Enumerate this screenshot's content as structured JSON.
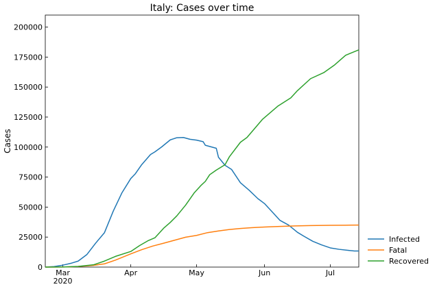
{
  "chart_data": {
    "type": "line",
    "title": "Italy: Cases over time",
    "xlabel": "",
    "ylabel": "Cases",
    "x_type": "date",
    "xlim": [
      "2020-02-22",
      "2020-07-14"
    ],
    "ylim": [
      0,
      210000
    ],
    "yticks": [
      0,
      25000,
      50000,
      75000,
      100000,
      125000,
      150000,
      175000,
      200000
    ],
    "xticks": [
      {
        "date": "2020-03-01",
        "label": "Mar",
        "sublabel": "2020"
      },
      {
        "date": "2020-04-01",
        "label": "Apr",
        "sublabel": ""
      },
      {
        "date": "2020-05-01",
        "label": "May",
        "sublabel": ""
      },
      {
        "date": "2020-06-01",
        "label": "Jun",
        "sublabel": ""
      },
      {
        "date": "2020-07-01",
        "label": "Jul",
        "sublabel": ""
      }
    ],
    "grid": false,
    "legend_position": "outside lower right",
    "series": [
      {
        "name": "Infected",
        "color": "#1f77b4",
        "points": [
          [
            "2020-02-22",
            0
          ],
          [
            "2020-02-26",
            400
          ],
          [
            "2020-03-01",
            1600
          ],
          [
            "2020-03-05",
            3300
          ],
          [
            "2020-03-08",
            5000
          ],
          [
            "2020-03-12",
            10500
          ],
          [
            "2020-03-16",
            20000
          ],
          [
            "2020-03-20",
            28700
          ],
          [
            "2020-03-24",
            46600
          ],
          [
            "2020-03-28",
            62000
          ],
          [
            "2020-04-01",
            73800
          ],
          [
            "2020-04-03",
            77600
          ],
          [
            "2020-04-06",
            85400
          ],
          [
            "2020-04-10",
            93800
          ],
          [
            "2020-04-12",
            96000
          ],
          [
            "2020-04-15",
            100000
          ],
          [
            "2020-04-19",
            106000
          ],
          [
            "2020-04-22",
            107800
          ],
          [
            "2020-04-25",
            108000
          ],
          [
            "2020-04-28",
            106500
          ],
          [
            "2020-05-01",
            105800
          ],
          [
            "2020-05-04",
            104500
          ],
          [
            "2020-05-05",
            101500
          ],
          [
            "2020-05-08",
            100000
          ],
          [
            "2020-05-10",
            99000
          ],
          [
            "2020-05-11",
            91500
          ],
          [
            "2020-05-14",
            84800
          ],
          [
            "2020-05-17",
            81300
          ],
          [
            "2020-05-21",
            70300
          ],
          [
            "2020-05-25",
            64000
          ],
          [
            "2020-05-29",
            57000
          ],
          [
            "2020-06-01",
            52900
          ],
          [
            "2020-06-05",
            45000
          ],
          [
            "2020-06-08",
            39000
          ],
          [
            "2020-06-12",
            35000
          ],
          [
            "2020-06-16",
            29000
          ],
          [
            "2020-06-19",
            25700
          ],
          [
            "2020-06-23",
            21500
          ],
          [
            "2020-06-27",
            18500
          ],
          [
            "2020-07-01",
            16000
          ],
          [
            "2020-07-05",
            14800
          ],
          [
            "2020-07-09",
            14000
          ],
          [
            "2020-07-12",
            13400
          ],
          [
            "2020-07-14",
            13400
          ]
        ]
      },
      {
        "name": "Fatal",
        "color": "#ff7f0e",
        "points": [
          [
            "2020-02-22",
            0
          ],
          [
            "2020-03-01",
            100
          ],
          [
            "2020-03-08",
            500
          ],
          [
            "2020-03-15",
            1400
          ],
          [
            "2020-03-20",
            2700
          ],
          [
            "2020-03-25",
            5800
          ],
          [
            "2020-04-01",
            11000
          ],
          [
            "2020-04-06",
            14500
          ],
          [
            "2020-04-11",
            17500
          ],
          [
            "2020-04-16",
            19900
          ],
          [
            "2020-04-21",
            22400
          ],
          [
            "2020-04-26",
            24900
          ],
          [
            "2020-05-01",
            26400
          ],
          [
            "2020-05-06",
            28700
          ],
          [
            "2020-05-11",
            30100
          ],
          [
            "2020-05-16",
            31300
          ],
          [
            "2020-05-21",
            32200
          ],
          [
            "2020-05-26",
            32800
          ],
          [
            "2020-06-01",
            33400
          ],
          [
            "2020-06-08",
            33900
          ],
          [
            "2020-06-15",
            34300
          ],
          [
            "2020-06-22",
            34600
          ],
          [
            "2020-07-01",
            34800
          ],
          [
            "2020-07-08",
            34900
          ],
          [
            "2020-07-14",
            35000
          ]
        ]
      },
      {
        "name": "Recovered",
        "color": "#2ca02c",
        "points": [
          [
            "2020-02-22",
            0
          ],
          [
            "2020-03-01",
            50
          ],
          [
            "2020-03-08",
            600
          ],
          [
            "2020-03-15",
            1900
          ],
          [
            "2020-03-20",
            5000
          ],
          [
            "2020-03-25",
            8900
          ],
          [
            "2020-04-01",
            13000
          ],
          [
            "2020-04-05",
            17900
          ],
          [
            "2020-04-09",
            22100
          ],
          [
            "2020-04-12",
            24400
          ],
          [
            "2020-04-16",
            32400
          ],
          [
            "2020-04-19",
            37200
          ],
          [
            "2020-04-22",
            42700
          ],
          [
            "2020-04-26",
            51600
          ],
          [
            "2020-04-30",
            62000
          ],
          [
            "2020-05-03",
            68000
          ],
          [
            "2020-05-05",
            71400
          ],
          [
            "2020-05-07",
            77000
          ],
          [
            "2020-05-10",
            80800
          ],
          [
            "2020-05-14",
            85300
          ],
          [
            "2020-05-16",
            92000
          ],
          [
            "2020-05-21",
            104000
          ],
          [
            "2020-05-24",
            108000
          ],
          [
            "2020-05-31",
            123000
          ],
          [
            "2020-06-07",
            134000
          ],
          [
            "2020-06-13",
            141000
          ],
          [
            "2020-06-16",
            147000
          ],
          [
            "2020-06-22",
            157000
          ],
          [
            "2020-06-28",
            162000
          ],
          [
            "2020-07-03",
            168500
          ],
          [
            "2020-07-08",
            176500
          ],
          [
            "2020-07-14",
            181000
          ]
        ]
      }
    ]
  }
}
